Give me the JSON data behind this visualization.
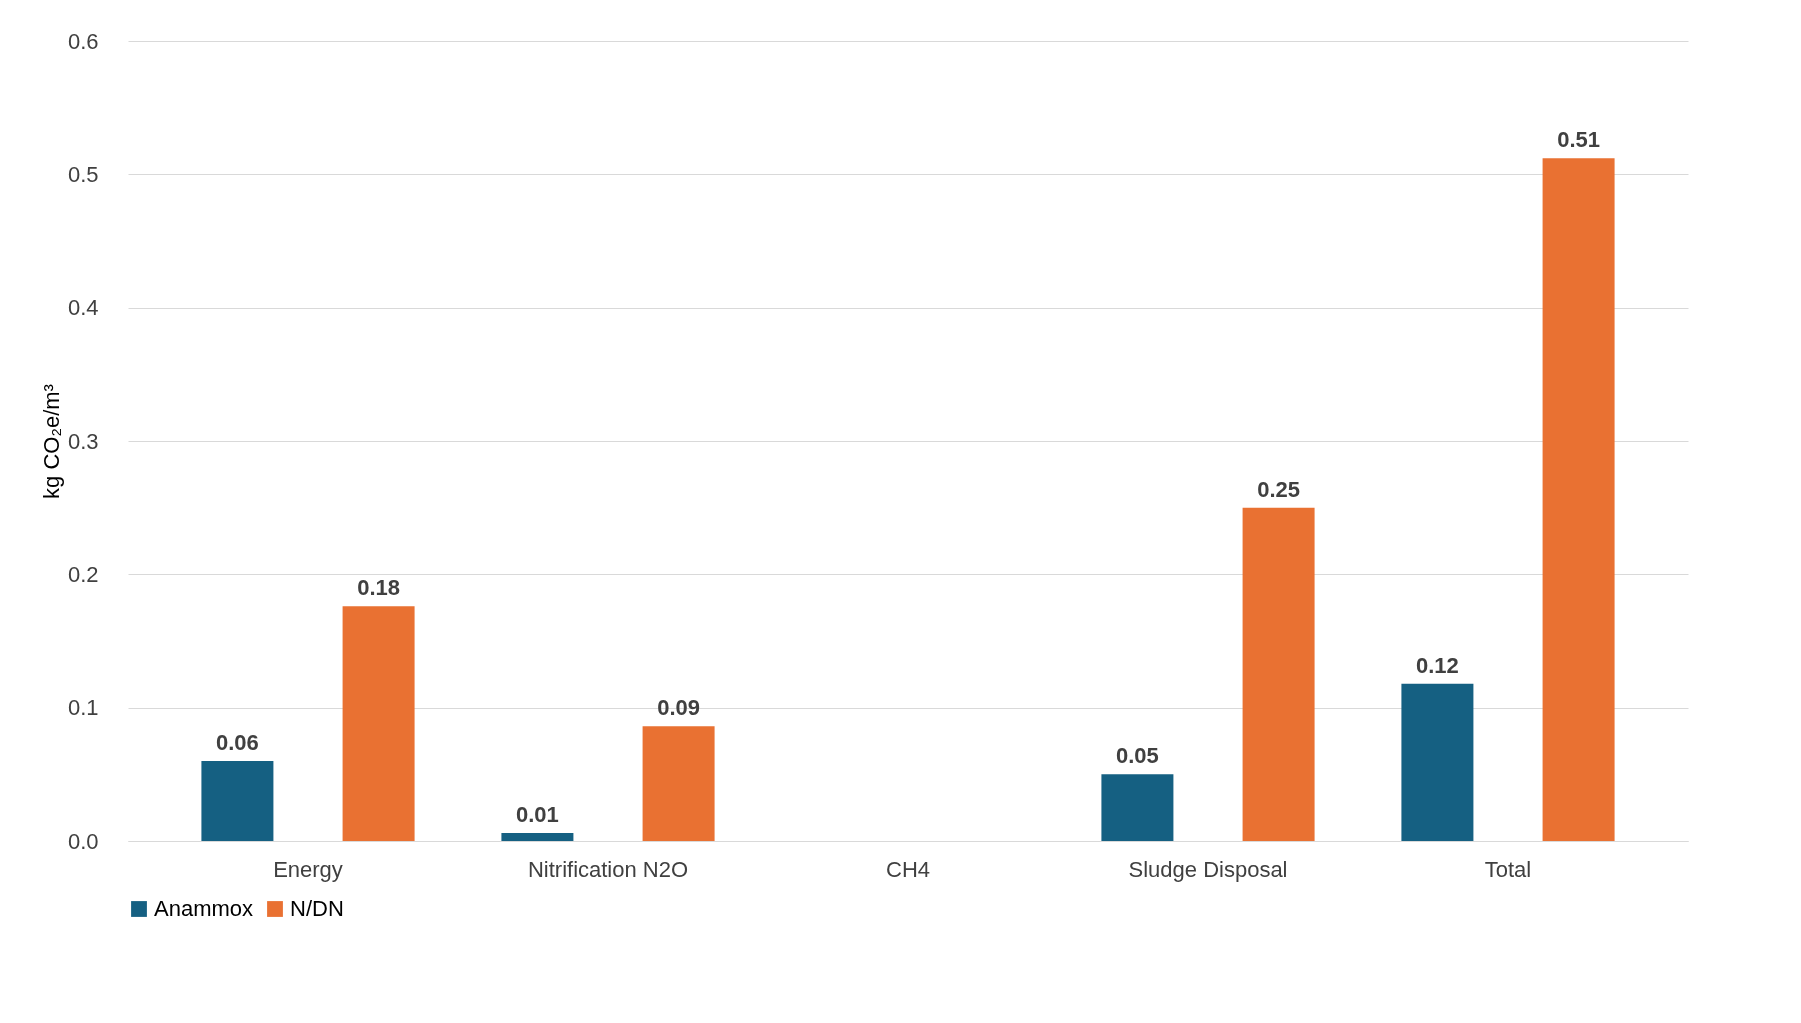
{
  "chart_data": {
    "type": "bar",
    "ylabel": "kg CO₂e/m³",
    "categories": [
      "Energy",
      "Nitrification N2O",
      "CH4",
      "Sludge Disposal",
      "Total"
    ],
    "series": [
      {
        "name": "Anammox",
        "color": "#156082",
        "values": [
          0.06,
          0.006,
          null,
          0.05,
          0.118
        ],
        "value_labels": [
          "0.06",
          "0.01",
          null,
          "0.05",
          "0.12"
        ]
      },
      {
        "name": "N/DN",
        "color": "#e97132",
        "values": [
          0.176,
          0.086,
          null,
          0.25,
          0.512
        ],
        "value_labels": [
          "0.18",
          "0.09",
          null,
          "0.25",
          "0.51"
        ]
      }
    ],
    "ylim": [
      0,
      0.6
    ],
    "yticks": [
      {
        "value": 0,
        "label": "0.0"
      },
      {
        "value": 0.1,
        "label": "0.1"
      },
      {
        "value": 0.2,
        "label": "0.2"
      },
      {
        "value": 0.3,
        "label": "0.3"
      },
      {
        "value": 0.4,
        "label": "0.4"
      },
      {
        "value": 0.5,
        "label": "0.5"
      },
      {
        "value": 0.6,
        "label": "0.6"
      }
    ],
    "grid": "y",
    "legend": "bottom"
  }
}
